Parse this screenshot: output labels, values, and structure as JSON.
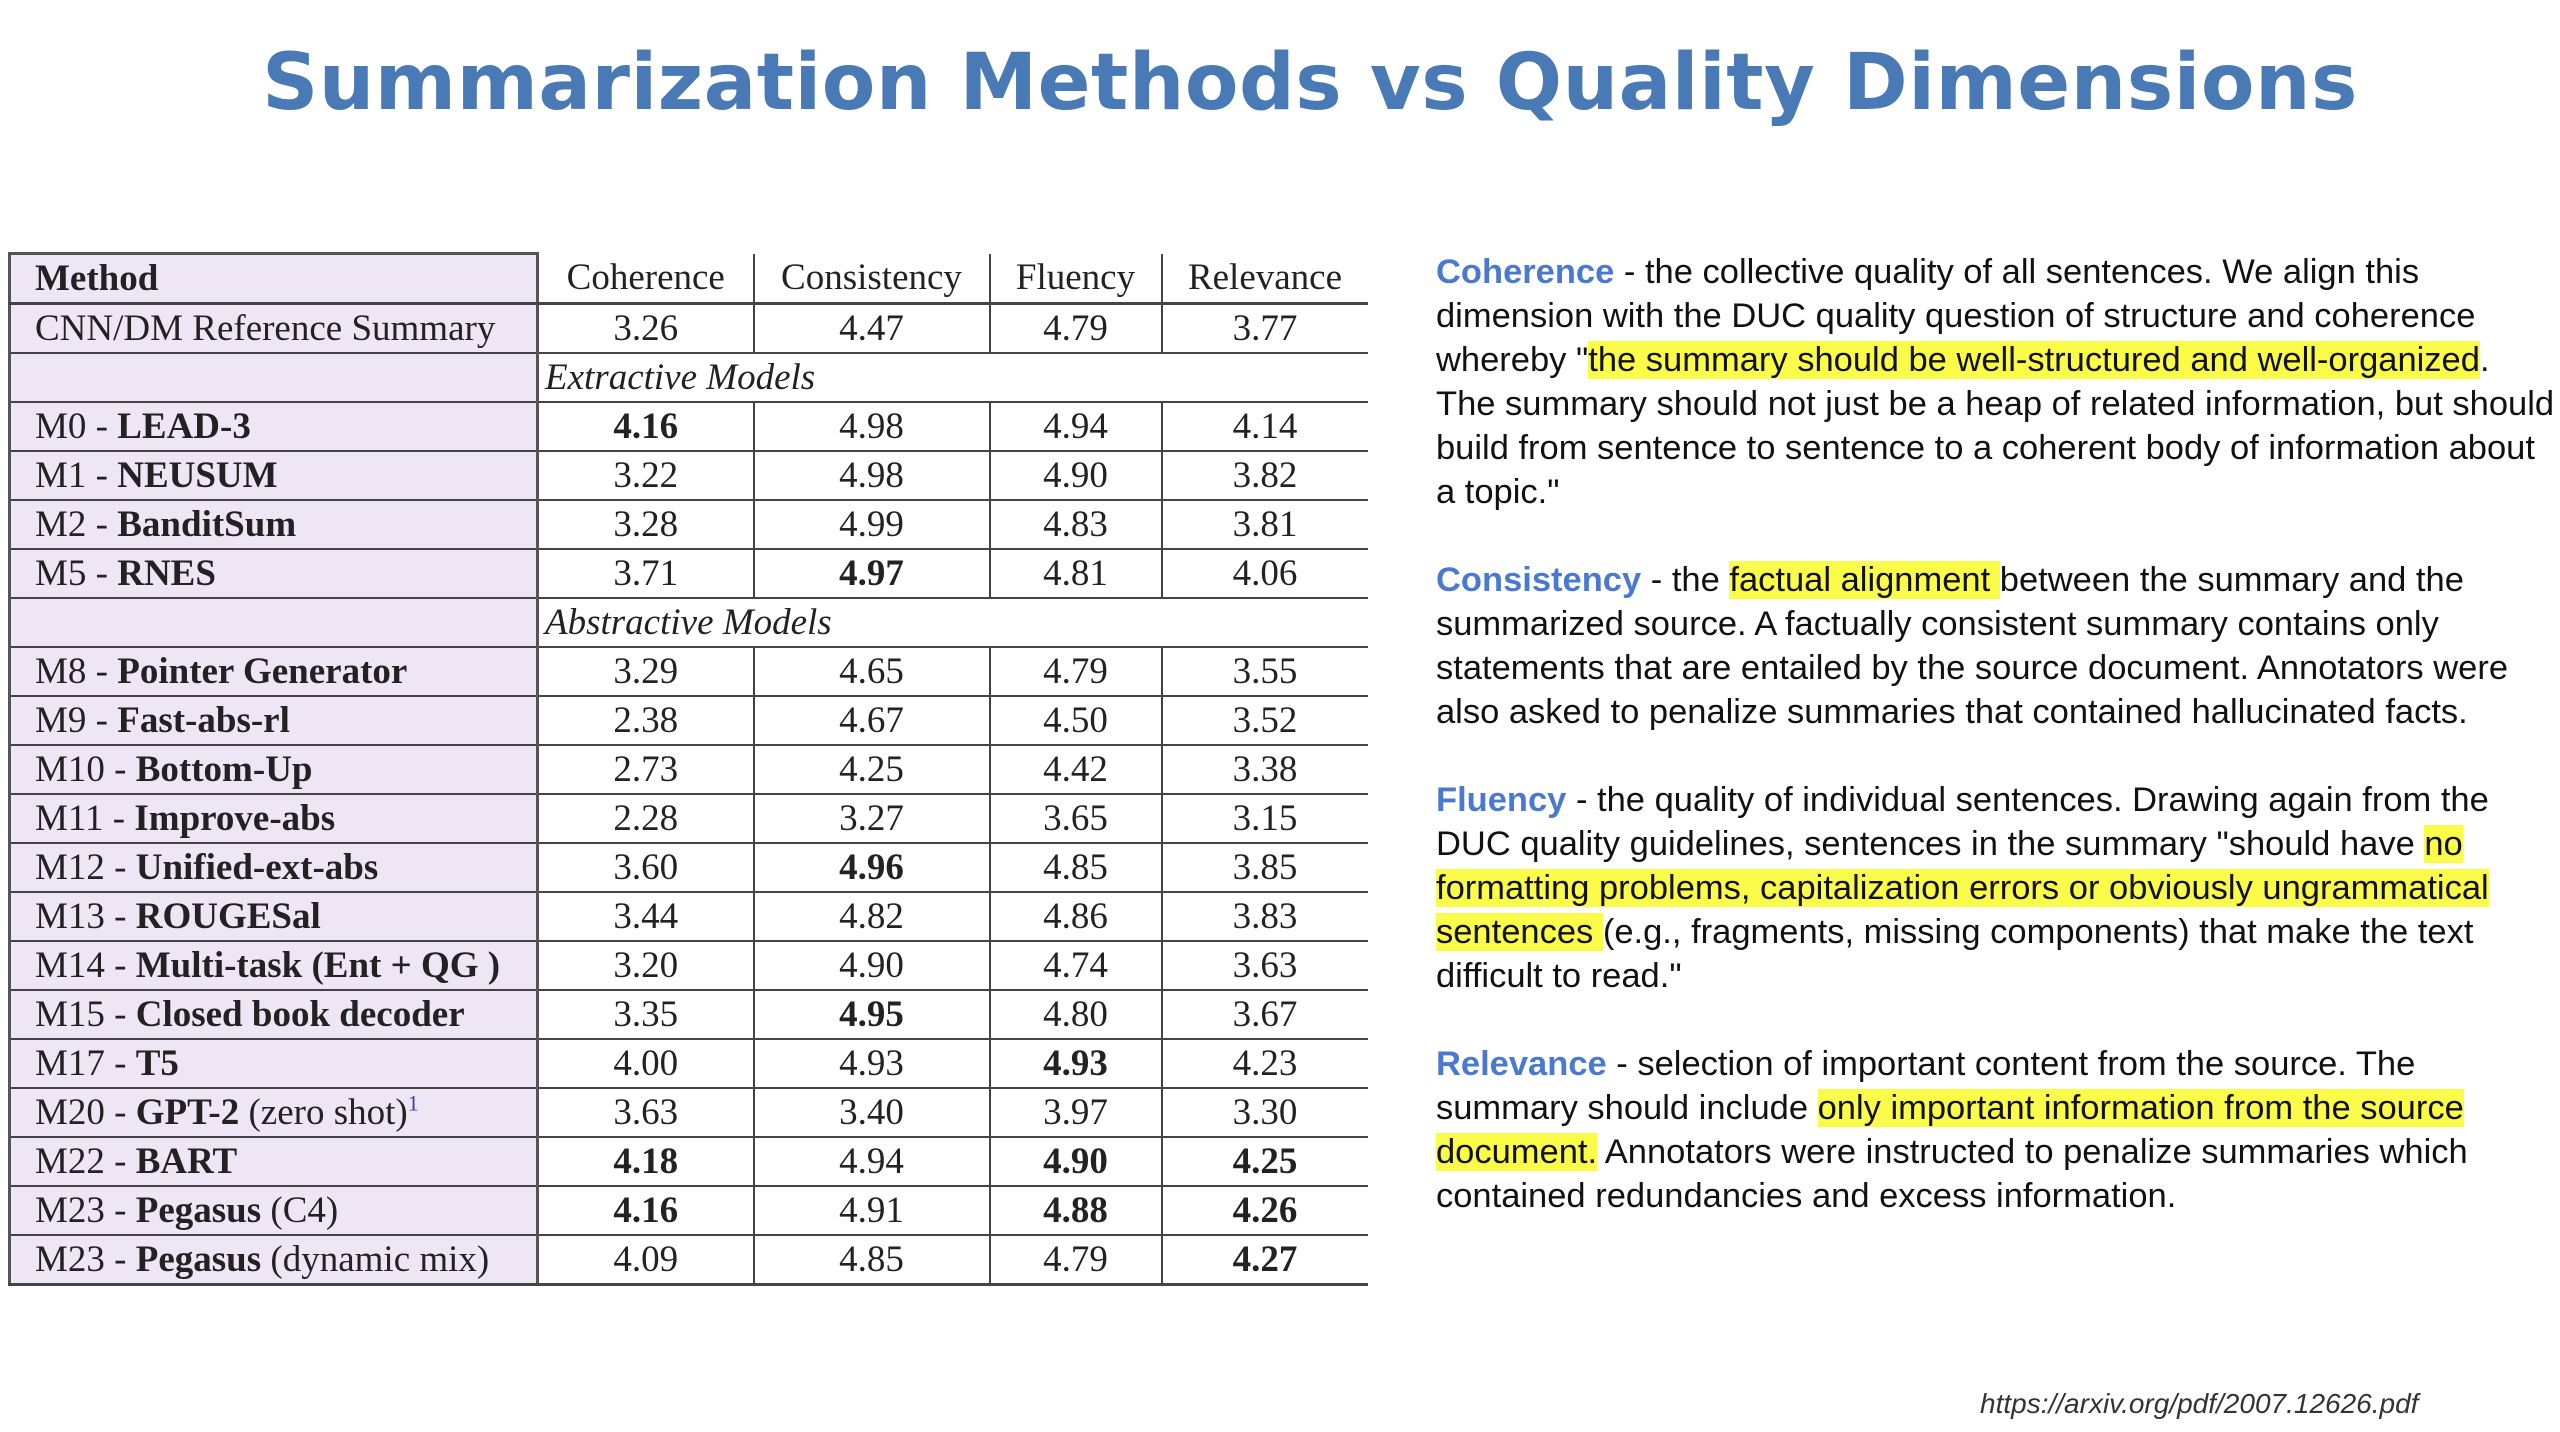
{
  "title": "Summarization Methods vs Quality Dimensions",
  "table": {
    "headers": [
      "Method",
      "Coherence",
      "Consistency",
      "Fluency",
      "Relevance"
    ],
    "reference": {
      "method": "CNN/DM Reference Summary",
      "values": [
        "3.26",
        "4.47",
        "4.79",
        "3.77"
      ]
    },
    "sections": {
      "extractive": "Extractive Models",
      "abstractive": "Abstractive Models"
    },
    "rows": [
      {
        "id": "M0",
        "name": "LEAD-3",
        "suffix": "",
        "values": [
          "4.16",
          "4.98",
          "4.94",
          "4.14"
        ],
        "bold": [
          true,
          false,
          false,
          false
        ]
      },
      {
        "id": "M1",
        "name": "NEUSUM",
        "suffix": "",
        "values": [
          "3.22",
          "4.98",
          "4.90",
          "3.82"
        ],
        "bold": [
          false,
          false,
          false,
          false
        ]
      },
      {
        "id": "M2",
        "name": "BanditSum",
        "suffix": "",
        "values": [
          "3.28",
          "4.99",
          "4.83",
          "3.81"
        ],
        "bold": [
          false,
          false,
          false,
          false
        ]
      },
      {
        "id": "M5",
        "name": "RNES",
        "suffix": "",
        "values": [
          "3.71",
          "4.97",
          "4.81",
          "4.06"
        ],
        "bold": [
          false,
          true,
          false,
          false
        ]
      },
      {
        "id": "M8",
        "name": "Pointer Generator",
        "suffix": "",
        "values": [
          "3.29",
          "4.65",
          "4.79",
          "3.55"
        ],
        "bold": [
          false,
          false,
          false,
          false
        ]
      },
      {
        "id": "M9",
        "name": "Fast-abs-rl",
        "suffix": "",
        "values": [
          "2.38",
          "4.67",
          "4.50",
          "3.52"
        ],
        "bold": [
          false,
          false,
          false,
          false
        ]
      },
      {
        "id": "M10",
        "name": "Bottom-Up",
        "suffix": "",
        "values": [
          "2.73",
          "4.25",
          "4.42",
          "3.38"
        ],
        "bold": [
          false,
          false,
          false,
          false
        ]
      },
      {
        "id": "M11",
        "name": "Improve-abs",
        "suffix": "",
        "values": [
          "2.28",
          "3.27",
          "3.65",
          "3.15"
        ],
        "bold": [
          false,
          false,
          false,
          false
        ]
      },
      {
        "id": "M12",
        "name": "Unified-ext-abs",
        "suffix": "",
        "values": [
          "3.60",
          "4.96",
          "4.85",
          "3.85"
        ],
        "bold": [
          false,
          true,
          false,
          false
        ]
      },
      {
        "id": "M13",
        "name": "ROUGESal",
        "suffix": "",
        "values": [
          "3.44",
          "4.82",
          "4.86",
          "3.83"
        ],
        "bold": [
          false,
          false,
          false,
          false
        ]
      },
      {
        "id": "M14",
        "name": "Multi-task (Ent + QG )",
        "suffix": "",
        "values": [
          "3.20",
          "4.90",
          "4.74",
          "3.63"
        ],
        "bold": [
          false,
          false,
          false,
          false
        ]
      },
      {
        "id": "M15",
        "name": "Closed book decoder",
        "suffix": "",
        "values": [
          "3.35",
          "4.95",
          "4.80",
          "3.67"
        ],
        "bold": [
          false,
          true,
          false,
          false
        ]
      },
      {
        "id": "M17",
        "name": "T5",
        "suffix": "",
        "values": [
          "4.00",
          "4.93",
          "4.93",
          "4.23"
        ],
        "bold": [
          false,
          false,
          true,
          false
        ]
      },
      {
        "id": "M20",
        "name": "GPT-2",
        "suffix": "(zero shot)",
        "sup": "1",
        "values": [
          "3.63",
          "3.40",
          "3.97",
          "3.30"
        ],
        "bold": [
          false,
          false,
          false,
          false
        ]
      },
      {
        "id": "M22",
        "name": "BART",
        "suffix": "",
        "values": [
          "4.18",
          "4.94",
          "4.90",
          "4.25"
        ],
        "bold": [
          true,
          false,
          true,
          true
        ]
      },
      {
        "id": "M23",
        "name": "Pegasus",
        "suffix": "(C4)",
        "values": [
          "4.16",
          "4.91",
          "4.88",
          "4.26"
        ],
        "bold": [
          true,
          false,
          true,
          true
        ]
      },
      {
        "id": "M23",
        "name": "Pegasus",
        "suffix": "(dynamic mix)",
        "values": [
          "4.09",
          "4.85",
          "4.79",
          "4.27"
        ],
        "bold": [
          false,
          false,
          false,
          true
        ]
      }
    ]
  },
  "definitions": [
    {
      "term": "Coherence",
      "parts": [
        {
          "t": " - the collective quality of all sentences. We align this dimension with the DUC quality question of structure and coherence whereby \"",
          "hl": false
        },
        {
          "t": "the summary should be well-structured and well-organized",
          "hl": true
        },
        {
          "t": ". The summary should not just be a heap of related information, but should build from sentence to sentence to a coherent body of information about a topic.\"",
          "hl": false
        }
      ]
    },
    {
      "term": "Consistency",
      "parts": [
        {
          "t": " - the ",
          "hl": false
        },
        {
          "t": "factual alignment ",
          "hl": true
        },
        {
          "t": "between the summary and the summarized source. A factually consistent summary contains only statements that are entailed by the source document. Annotators were also asked to penalize summaries that contained hallucinated facts.",
          "hl": false
        }
      ]
    },
    {
      "term": "Fluency",
      "parts": [
        {
          "t": " - the quality of individual sentences. Drawing again from the DUC quality guidelines, sentences in the summary \"should have ",
          "hl": false
        },
        {
          "t": "no formatting problems, capitalization errors or obviously ungrammatical sentences ",
          "hl": true
        },
        {
          "t": "(e.g., fragments, missing components) that make the text difficult to read.\"",
          "hl": false
        }
      ]
    },
    {
      "term": "Relevance",
      "parts": [
        {
          "t": " - selection of important content from the source. The summary should include ",
          "hl": false
        },
        {
          "t": "only important information from the source document.",
          "hl": true
        },
        {
          "t": " Annotators were instructed to penalize summaries which contained redundancies and excess information.",
          "hl": false
        }
      ]
    }
  ],
  "source": "https://arxiv.org/pdf/2007.12626.pdf"
}
